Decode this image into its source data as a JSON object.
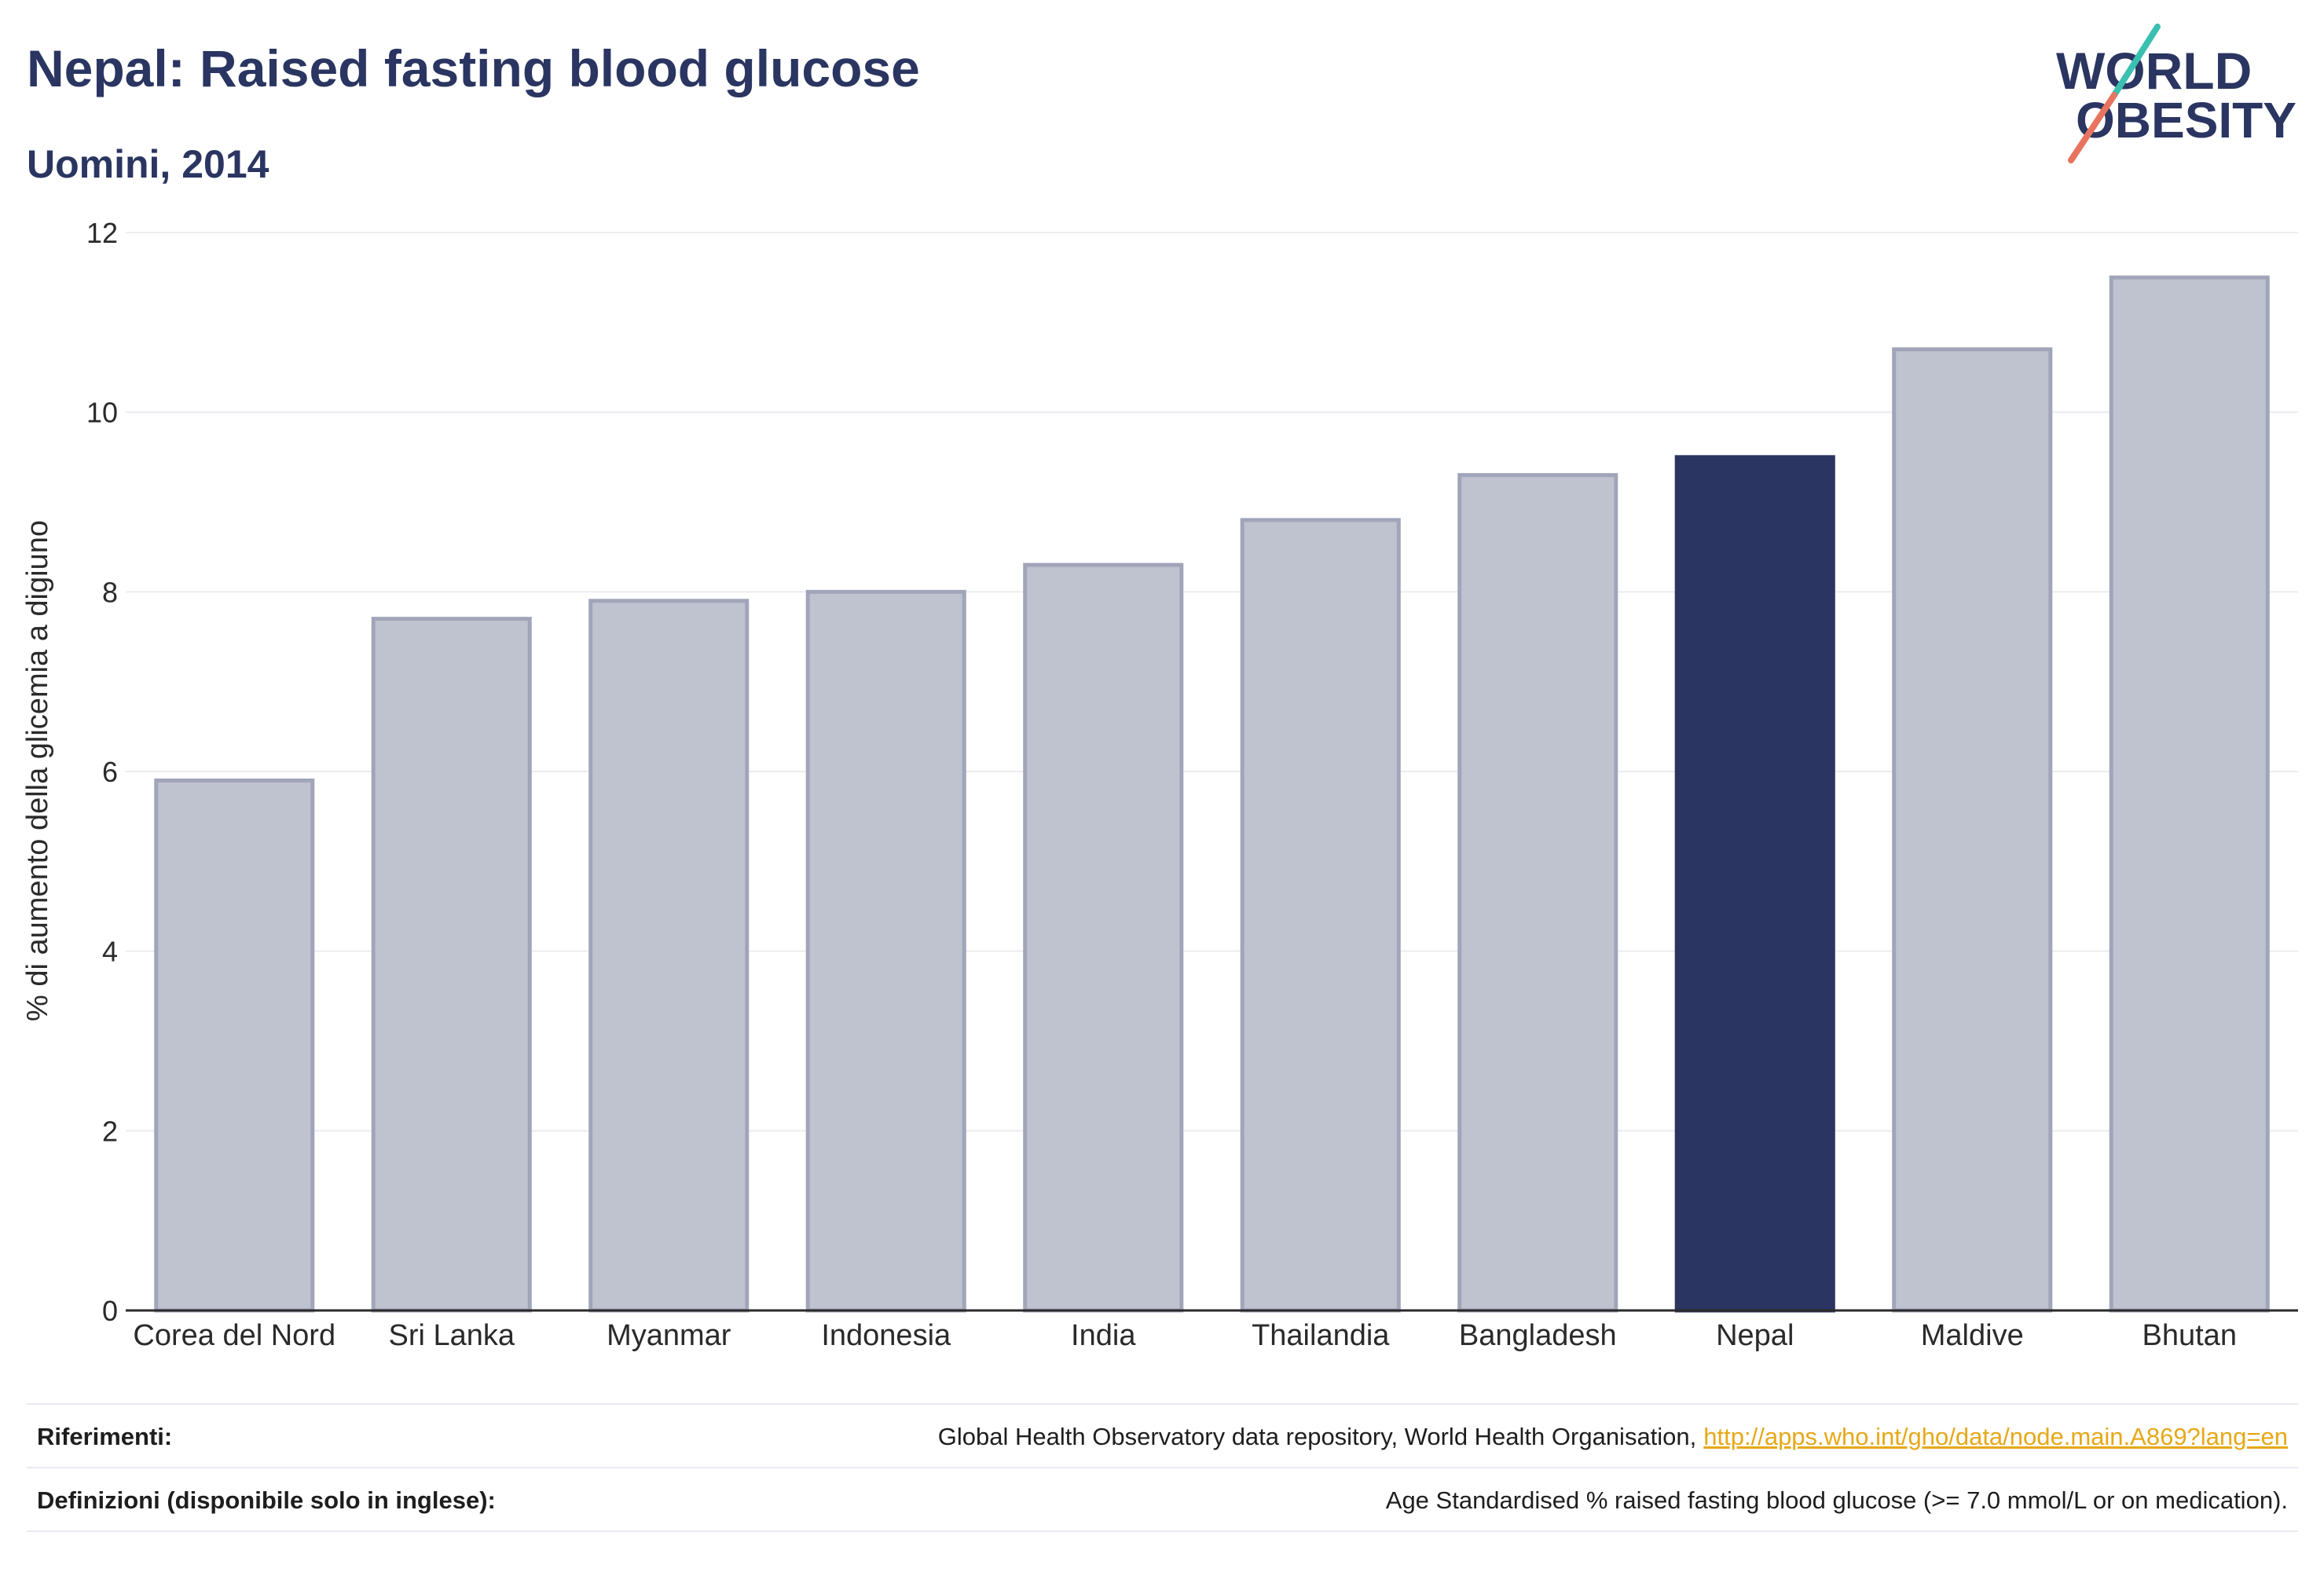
{
  "logo": {
    "line1": "WORLD",
    "line2": "OBESITY"
  },
  "colors": {
    "title": "#2a3561",
    "bar": "#bfc2cf",
    "bar_stroke": "#a0a5b9",
    "highlight_bar": "#2a3561",
    "gridline": "#ebebf0",
    "axis": "#2b2b2b",
    "link": "#e6a817",
    "logo_text": "#2a3561",
    "logo_teal": "#3bbfb0",
    "logo_coral": "#e8735f"
  },
  "chart_data": {
    "type": "bar",
    "title": "Nepal: Raised fasting blood glucose",
    "subtitle": "Uomini, 2014",
    "xlabel": "",
    "ylabel": "% di aumento della glicemia a digiuno",
    "categories": [
      "Corea del Nord",
      "Sri Lanka",
      "Myanmar",
      "Indonesia",
      "India",
      "Thailandia",
      "Bangladesh",
      "Nepal",
      "Maldive",
      "Bhutan"
    ],
    "values": [
      5.9,
      7.7,
      7.9,
      8.0,
      8.3,
      8.8,
      9.3,
      9.5,
      10.7,
      11.5
    ],
    "highlight_index": 7,
    "ylim": [
      0,
      12
    ],
    "yticks": [
      0,
      2,
      4,
      6,
      8,
      10,
      12
    ],
    "grid": true
  },
  "footer": {
    "references_label": "Riferimenti:",
    "references_text": "Global Health Observatory data repository, World Health Organisation,",
    "references_link": "http://apps.who.int/gho/data/node.main.A869?lang=en",
    "definitions_label": "Definizioni (disponibile solo in inglese):",
    "definitions_text": "Age Standardised % raised fasting blood glucose (>= 7.0 mmol/L or on medication)."
  }
}
